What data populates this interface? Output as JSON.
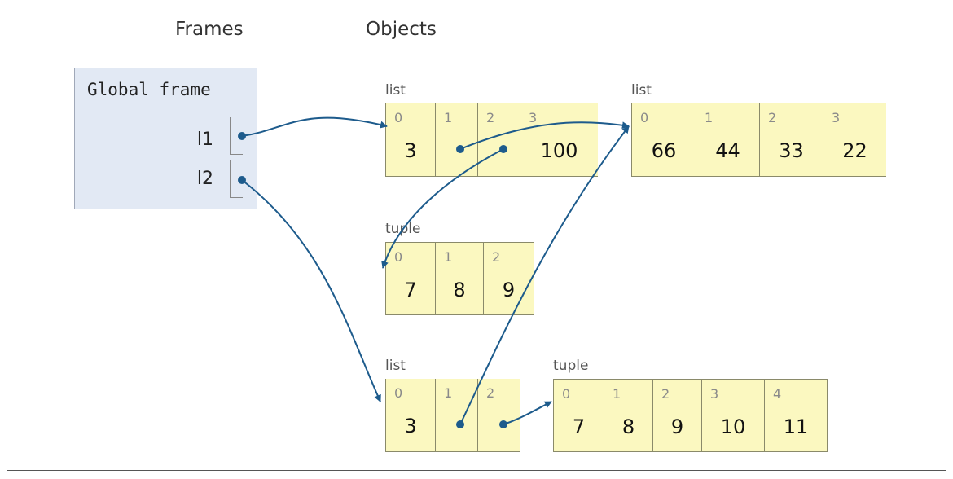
{
  "headers": {
    "frames": "Frames",
    "objects": "Objects"
  },
  "frame": {
    "title": "Global frame",
    "vars": [
      {
        "name": "l1"
      },
      {
        "name": "l2"
      }
    ]
  },
  "objects": {
    "list_a": {
      "type": "list",
      "items": [
        {
          "index": "0",
          "value": "3"
        },
        {
          "index": "1",
          "value": ""
        },
        {
          "index": "2",
          "value": ""
        },
        {
          "index": "3",
          "value": "100"
        }
      ]
    },
    "list_b": {
      "type": "list",
      "items": [
        {
          "index": "0",
          "value": "66"
        },
        {
          "index": "1",
          "value": "44"
        },
        {
          "index": "2",
          "value": "33"
        },
        {
          "index": "3",
          "value": "22"
        }
      ]
    },
    "tuple_a": {
      "type": "tuple",
      "items": [
        {
          "index": "0",
          "value": "7"
        },
        {
          "index": "1",
          "value": "8"
        },
        {
          "index": "2",
          "value": "9"
        }
      ]
    },
    "list_c": {
      "type": "list",
      "items": [
        {
          "index": "0",
          "value": "3"
        },
        {
          "index": "1",
          "value": ""
        },
        {
          "index": "2",
          "value": ""
        }
      ]
    },
    "tuple_b": {
      "type": "tuple",
      "items": [
        {
          "index": "0",
          "value": "7"
        },
        {
          "index": "1",
          "value": "8"
        },
        {
          "index": "2",
          "value": "9"
        },
        {
          "index": "3",
          "value": "10"
        },
        {
          "index": "4",
          "value": "11"
        }
      ]
    }
  },
  "colors": {
    "arrow": "#1d5b8c",
    "cell": "#fbf8c0",
    "frame": "#e2e9f4"
  }
}
